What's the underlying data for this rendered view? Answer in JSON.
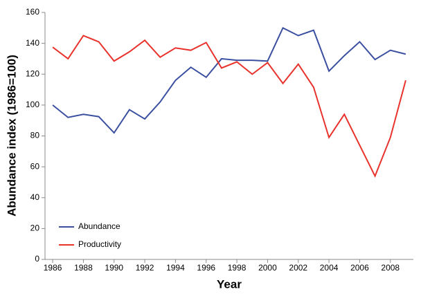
{
  "chart_data": {
    "type": "line",
    "x": [
      1986,
      1987,
      1988,
      1989,
      1990,
      1991,
      1992,
      1993,
      1994,
      1995,
      1996,
      1997,
      1998,
      1999,
      2000,
      2001,
      2002,
      2003,
      2004,
      2005,
      2006,
      2007,
      2008,
      2009
    ],
    "series": [
      {
        "name": "Abundance",
        "color": "#3a4fa0",
        "values": [
          100,
          92,
          94,
          92.5,
          82,
          97,
          91,
          102,
          116,
          124.5,
          118,
          130,
          129,
          129,
          128.5,
          150,
          145,
          148.5,
          122,
          132,
          141,
          129.5,
          135.5,
          133
        ]
      },
      {
        "name": "Productivity",
        "color": "#e8322b",
        "values": [
          137.5,
          130,
          145,
          141,
          128.5,
          134.5,
          142,
          131,
          137,
          135.5,
          140.5,
          124,
          128,
          120,
          127.5,
          114,
          126.5,
          111.5,
          79,
          94,
          74,
          54,
          79,
          116
        ]
      }
    ],
    "x_label": "Year",
    "y_label": "Abundance index (1986=100)",
    "xlim": [
      1985.5,
      2009.5
    ],
    "xticks": [
      1986,
      1988,
      1990,
      1992,
      1994,
      1996,
      1998,
      2000,
      2002,
      2004,
      2006,
      2008
    ],
    "ylim": [
      0,
      160
    ],
    "yticks": [
      0,
      20,
      40,
      60,
      80,
      100,
      120,
      140,
      160
    ],
    "legend": "lower-left",
    "grid": false
  }
}
